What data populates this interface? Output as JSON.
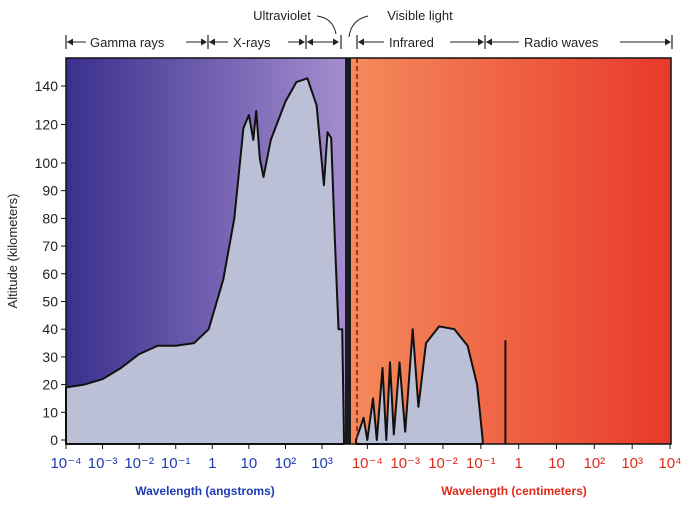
{
  "chart_data": {
    "type": "area",
    "title": "",
    "ylabel": "Altitude (kilometers)",
    "ylim": [
      0,
      150
    ],
    "yticks": [
      0,
      10,
      20,
      30,
      40,
      50,
      60,
      70,
      80,
      90,
      100,
      120,
      140
    ],
    "grid": false,
    "bands": [
      {
        "name": "Gamma rays"
      },
      {
        "name": "X-rays"
      },
      {
        "name": "Ultraviolet"
      },
      {
        "name": "Visible light"
      },
      {
        "name": "Infrared"
      },
      {
        "name": "Radio waves"
      }
    ],
    "panels": [
      {
        "xlabel": "Wavelength (angstroms)",
        "xticks": [
          "10⁻⁴",
          "10⁻³",
          "10⁻²",
          "10⁻¹",
          "1",
          "10",
          "10²",
          "10³"
        ],
        "color": "#1e3cb4",
        "background": [
          "#3a2f8e",
          "#a68fd0"
        ],
        "series": [
          {
            "x_log10": -4.0,
            "y": 19
          },
          {
            "x_log10": -3.5,
            "y": 20
          },
          {
            "x_log10": -3.0,
            "y": 22
          },
          {
            "x_log10": -2.5,
            "y": 26
          },
          {
            "x_log10": -2.0,
            "y": 31
          },
          {
            "x_log10": -1.5,
            "y": 34
          },
          {
            "x_log10": -1.0,
            "y": 34
          },
          {
            "x_log10": -0.5,
            "y": 35
          },
          {
            "x_log10": -0.1,
            "y": 40
          },
          {
            "x_log10": 0.3,
            "y": 58
          },
          {
            "x_log10": 0.6,
            "y": 80
          },
          {
            "x_log10": 0.85,
            "y": 118
          },
          {
            "x_log10": 1.0,
            "y": 125
          },
          {
            "x_log10": 1.12,
            "y": 112
          },
          {
            "x_log10": 1.2,
            "y": 127
          },
          {
            "x_log10": 1.3,
            "y": 102
          },
          {
            "x_log10": 1.4,
            "y": 95
          },
          {
            "x_log10": 1.6,
            "y": 112
          },
          {
            "x_log10": 2.0,
            "y": 132
          },
          {
            "x_log10": 2.3,
            "y": 142
          },
          {
            "x_log10": 2.6,
            "y": 144
          },
          {
            "x_log10": 2.85,
            "y": 130
          },
          {
            "x_log10": 3.05,
            "y": 92
          },
          {
            "x_log10": 3.15,
            "y": 116
          },
          {
            "x_log10": 3.25,
            "y": 113
          },
          {
            "x_log10": 3.35,
            "y": 72
          },
          {
            "x_log10": 3.45,
            "y": 40
          },
          {
            "x_log10": 3.55,
            "y": 40
          },
          {
            "x_log10": 3.6,
            "y": 0
          }
        ]
      },
      {
        "xlabel": "Wavelength (centimeters)",
        "xticks": [
          "10⁻⁴",
          "10⁻³",
          "10⁻²",
          "10⁻¹",
          "1",
          "10",
          "10²",
          "10³",
          "10⁴"
        ],
        "color": "#e02a1a",
        "background": [
          "#f58a5c",
          "#e8392a"
        ],
        "series": [
          {
            "x_log10": -4.3,
            "y": 0
          },
          {
            "x_log10": -4.1,
            "y": 8
          },
          {
            "x_log10": -4.0,
            "y": 0
          },
          {
            "x_log10": -3.85,
            "y": 15
          },
          {
            "x_log10": -3.75,
            "y": 0
          },
          {
            "x_log10": -3.6,
            "y": 26
          },
          {
            "x_log10": -3.5,
            "y": 0
          },
          {
            "x_log10": -3.4,
            "y": 28
          },
          {
            "x_log10": -3.3,
            "y": 2
          },
          {
            "x_log10": -3.15,
            "y": 28
          },
          {
            "x_log10": -3.0,
            "y": 3
          },
          {
            "x_log10": -2.8,
            "y": 40
          },
          {
            "x_log10": -2.65,
            "y": 12
          },
          {
            "x_log10": -2.45,
            "y": 35
          },
          {
            "x_log10": -2.1,
            "y": 41
          },
          {
            "x_log10": -1.7,
            "y": 40
          },
          {
            "x_log10": -1.35,
            "y": 34
          },
          {
            "x_log10": -1.1,
            "y": 20
          },
          {
            "x_log10": -0.95,
            "y": 0
          }
        ],
        "spike": {
          "x_log10": -0.35,
          "y": 36
        }
      }
    ]
  }
}
